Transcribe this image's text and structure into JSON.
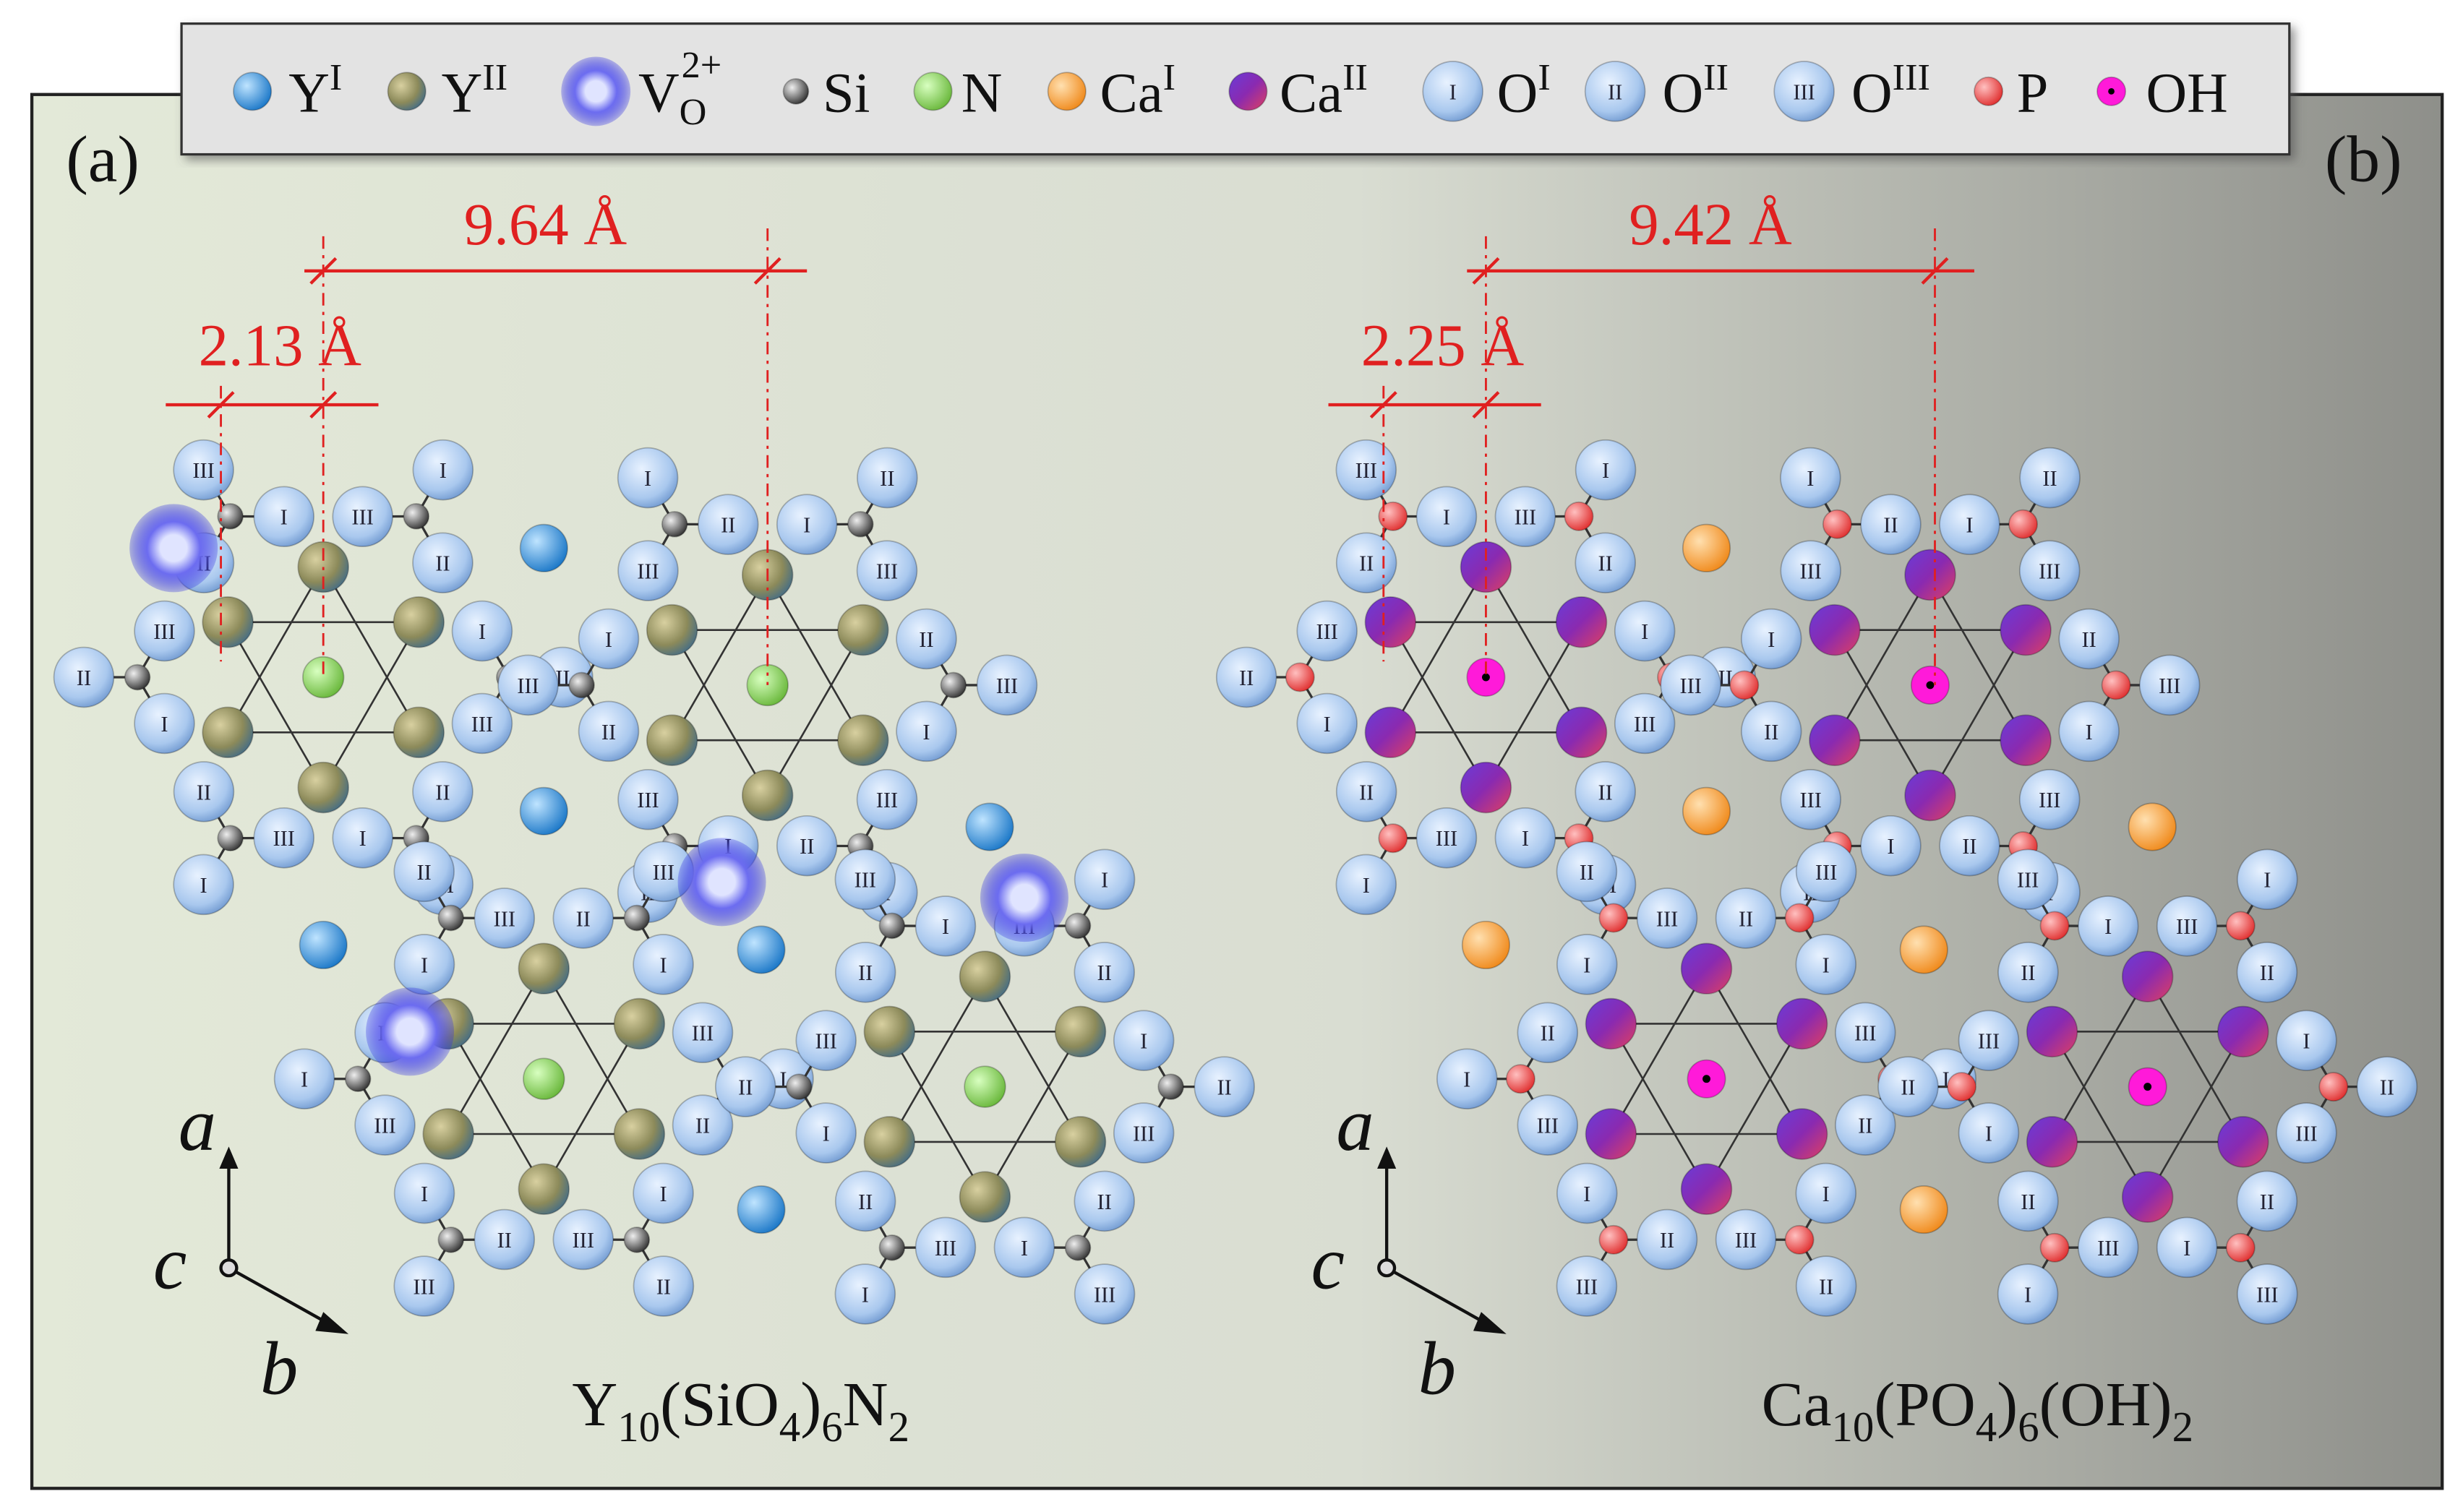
{
  "legend": [
    {
      "symbol": "Y",
      "sup": "I"
    },
    {
      "symbol": "Y",
      "sup": "II"
    },
    {
      "symbol": "V",
      "sub": "O",
      "sup": "2+"
    },
    {
      "symbol": "Si"
    },
    {
      "symbol": "N"
    },
    {
      "symbol": "Ca",
      "sup": "I"
    },
    {
      "symbol": "Ca",
      "sup": "II"
    },
    {
      "symbol": "O",
      "sup": "I"
    },
    {
      "symbol": "O",
      "sup": "II"
    },
    {
      "symbol": "O",
      "sup": "III"
    },
    {
      "symbol": "P"
    },
    {
      "symbol": "OH"
    }
  ],
  "atom_labels": [
    "I",
    "II",
    "III"
  ],
  "panels": [
    {
      "label": "(a)",
      "distance_large": "9.64 Å",
      "distance_small": "2.13 Å",
      "axes": {
        "a": "a",
        "b": "b",
        "c": "c"
      },
      "formula": [
        {
          "text": "Y"
        },
        {
          "sub": "10"
        },
        {
          "text": "(SiO"
        },
        {
          "sub": "4"
        },
        {
          "text": ")"
        },
        {
          "sub": "6"
        },
        {
          "text": "N"
        },
        {
          "sub": "2"
        }
      ]
    },
    {
      "label": "(b)",
      "distance_large": "9.42 Å",
      "distance_small": "2.25 Å",
      "axes": {
        "a": "a",
        "b": "b",
        "c": "c"
      },
      "formula": [
        {
          "text": "Ca"
        },
        {
          "sub": "10"
        },
        {
          "text": "(PO"
        },
        {
          "sub": "4"
        },
        {
          "text": ")"
        },
        {
          "sub": "6"
        },
        {
          "text": "(OH)"
        },
        {
          "sub": "2"
        }
      ]
    }
  ]
}
